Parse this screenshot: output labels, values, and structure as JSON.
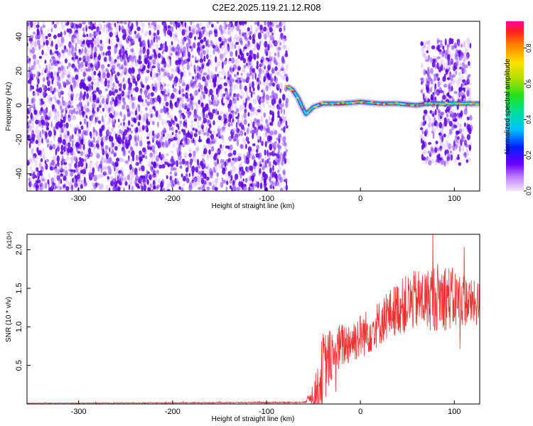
{
  "title": "C2E2.2025.119.21.12.R08",
  "colors": {
    "spectrogram_noise": "#7b2cff",
    "spectrogram_dark": "#5a00e0",
    "signal_line": "#ee3333"
  },
  "chart_data": [
    {
      "type": "heatmap",
      "name": "spectrogram",
      "xlabel": "Height of straight line (km)",
      "ylabel": "Frequency (Hz)",
      "xlim": [
        -355,
        127
      ],
      "ylim": [
        -50,
        49
      ],
      "x_ticks": [
        -300,
        -200,
        -100,
        0,
        100
      ],
      "y_ticks": [
        -40,
        -20,
        0,
        20,
        40
      ],
      "grid": false,
      "regions": [
        {
          "kind": "noise",
          "x_range": [
            -355,
            -78
          ],
          "f_range": [
            -50,
            49
          ]
        },
        {
          "kind": "blank",
          "x_range": [
            -78,
            65
          ],
          "f_range": [
            -50,
            49
          ]
        },
        {
          "kind": "noise",
          "x_range": [
            65,
            118
          ],
          "f_range": [
            -35,
            38
          ]
        }
      ],
      "signal_track": {
        "x": [
          -78,
          -72,
          -66,
          -62,
          -58,
          -50,
          -40,
          -20,
          0,
          20,
          40,
          60,
          70,
          90,
          110,
          127
        ],
        "freq_hz": [
          11,
          9,
          4,
          -1,
          -5,
          -1,
          1,
          1,
          2,
          1,
          1,
          0,
          1,
          1,
          1,
          1
        ]
      },
      "colorbar": {
        "label": "Normalized spectral amplitude",
        "ticks": [
          "0.0",
          "0.2",
          "0.4",
          "0.6",
          "0.8"
        ],
        "range": [
          0,
          0.95
        ],
        "colormap": "rainbow"
      }
    },
    {
      "type": "line",
      "name": "snr",
      "xlabel": "Height of straight line (km)",
      "ylabel": "SNR (10 * v/v)",
      "y_multiplier": "(x10⁴)",
      "xlim": [
        -355,
        127
      ],
      "ylim": [
        0,
        2.2
      ],
      "x_ticks": [
        -300,
        -200,
        -100,
        0,
        100
      ],
      "y_ticks": [
        "0.5",
        "1.0",
        "1.5",
        "2.0"
      ],
      "grid": false,
      "envelope": {
        "x": [
          -355,
          -60,
          -55,
          -45,
          -40,
          -35,
          -30,
          -20,
          -10,
          0,
          10,
          20,
          30,
          40,
          50,
          60,
          70,
          80,
          90,
          100,
          110,
          120,
          127
        ],
        "mean": [
          0.01,
          0.02,
          0.08,
          0.2,
          0.45,
          0.55,
          0.65,
          0.75,
          0.82,
          0.88,
          0.95,
          1.05,
          1.15,
          1.25,
          1.3,
          1.35,
          1.35,
          1.4,
          1.4,
          1.35,
          1.35,
          1.3,
          1.3
        ],
        "amplitude": [
          0.003,
          0.01,
          0.05,
          0.3,
          0.5,
          0.4,
          0.35,
          0.3,
          0.3,
          0.3,
          0.3,
          0.3,
          0.32,
          0.35,
          0.38,
          0.4,
          0.4,
          0.45,
          0.45,
          0.4,
          0.35,
          0.3,
          0.3
        ]
      }
    }
  ]
}
